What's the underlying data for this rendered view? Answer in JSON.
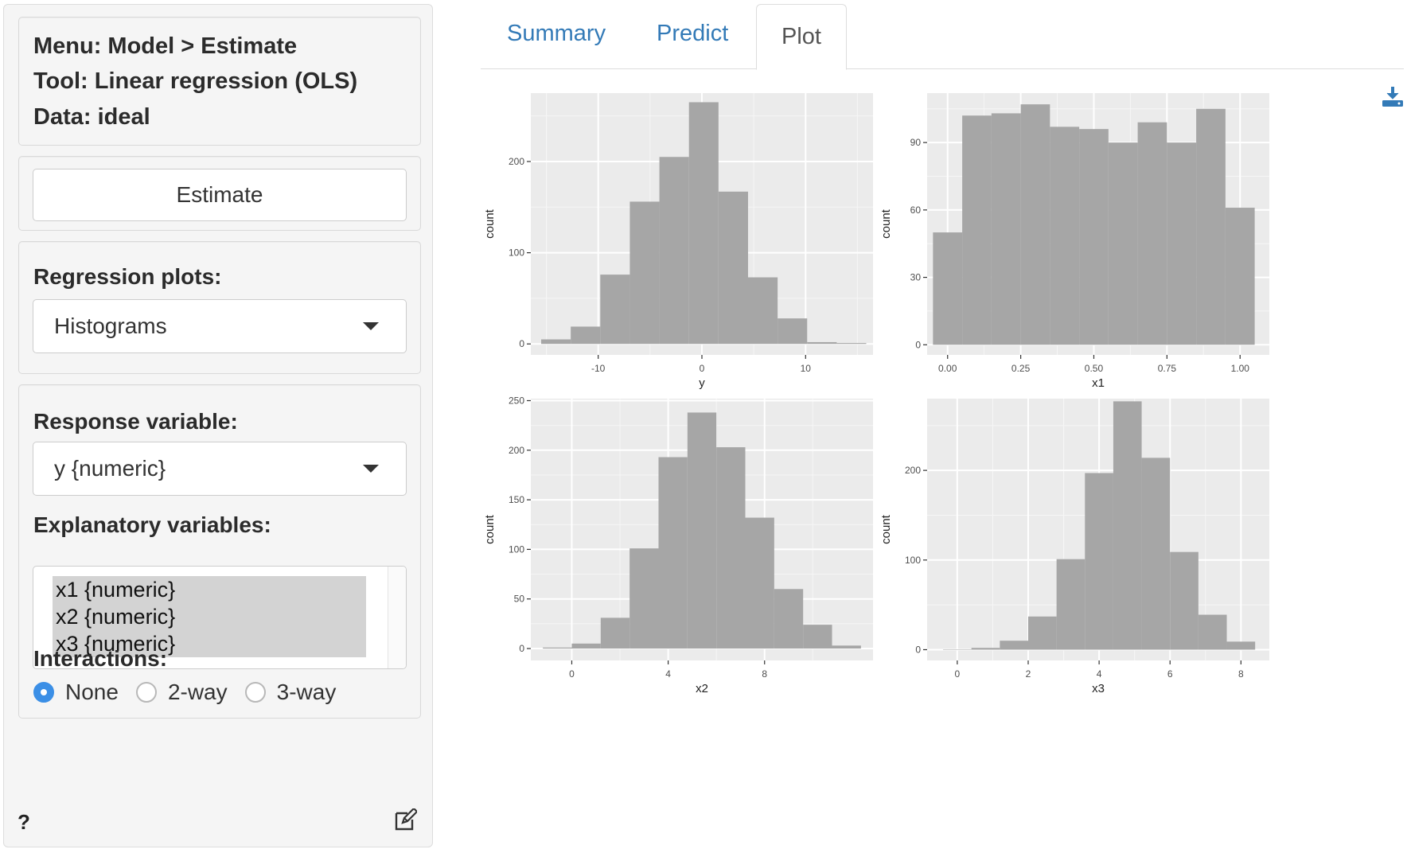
{
  "sidebar": {
    "info": {
      "menu": "Menu: Model > Estimate",
      "tool": "Tool: Linear regression (OLS)",
      "data": "Data: ideal"
    },
    "estimate_label": "Estimate",
    "regression_plots": {
      "label": "Regression plots:",
      "selected": "Histograms"
    },
    "response": {
      "label": "Response variable:",
      "selected": "y {numeric}"
    },
    "explanatory": {
      "label": "Explanatory variables:",
      "options": [
        "x1 {numeric}",
        "x2 {numeric}",
        "x3 {numeric}"
      ]
    },
    "interactions": {
      "label": "Interactions:",
      "options": [
        "None",
        "2-way",
        "3-way"
      ],
      "selected": "None"
    },
    "help_symbol": "?"
  },
  "tabs": [
    {
      "label": "Summary",
      "active": false
    },
    {
      "label": "Predict",
      "active": false
    },
    {
      "label": "Plot",
      "active": true
    }
  ],
  "icons": {
    "download": "download-icon",
    "edit": "edit-icon",
    "help": "help-icon"
  },
  "colors": {
    "link": "#337ab7",
    "radio_on": "#3b8fe6",
    "bar": "#a6a6a6",
    "panel": "#ebebeb"
  },
  "chart_data": [
    {
      "type": "bar",
      "variable": "y",
      "xlabel": "y",
      "ylabel": "count",
      "x_ticks": [
        -10,
        0,
        10
      ],
      "y_ticks": [
        0,
        100,
        200
      ],
      "xlim": [
        -16.5,
        16.5
      ],
      "ylim": [
        -12,
        275
      ],
      "binwidth": 2.85,
      "bin_starts": [
        -15.5,
        -12.65,
        -9.8,
        -6.95,
        -4.1,
        -1.25,
        1.6,
        4.45,
        7.3,
        10.15,
        13.0
      ],
      "values": [
        5,
        19,
        76,
        156,
        205,
        265,
        167,
        73,
        28,
        2,
        1
      ]
    },
    {
      "type": "bar",
      "variable": "x1",
      "xlabel": "x1",
      "ylabel": "count",
      "x_ticks": [
        "0.00",
        "0.25",
        "0.50",
        "0.75",
        "1.00"
      ],
      "y_ticks": [
        0,
        30,
        60,
        90
      ],
      "xlim": [
        -0.07,
        1.1
      ],
      "ylim": [
        -4.5,
        112
      ],
      "binwidth": 0.1,
      "bin_starts": [
        -0.05,
        0.05,
        0.15,
        0.25,
        0.35,
        0.45,
        0.55,
        0.65,
        0.75,
        0.85,
        0.95
      ],
      "values": [
        50,
        102,
        103,
        107,
        97,
        96,
        90,
        99,
        90,
        105,
        61
      ]
    },
    {
      "type": "bar",
      "variable": "x2",
      "xlabel": "x2",
      "ylabel": "count",
      "x_ticks": [
        0,
        4,
        8
      ],
      "y_ticks": [
        0,
        50,
        100,
        150,
        200,
        250
      ],
      "xlim": [
        -1.7,
        12.5
      ],
      "ylim": [
        -12,
        252
      ],
      "binwidth": 1.2,
      "bin_starts": [
        -1.2,
        0.0,
        1.2,
        2.4,
        3.6,
        4.8,
        6.0,
        7.2,
        8.4,
        9.6,
        10.8
      ],
      "values": [
        1,
        5,
        31,
        101,
        193,
        238,
        203,
        132,
        60,
        24,
        3
      ]
    },
    {
      "type": "bar",
      "variable": "x3",
      "xlabel": "x3",
      "ylabel": "count",
      "x_ticks": [
        0,
        2,
        4,
        6,
        8
      ],
      "y_ticks": [
        0,
        100,
        200
      ],
      "xlim": [
        -0.85,
        8.8
      ],
      "ylim": [
        -12,
        280
      ],
      "binwidth": 0.8,
      "bin_starts": [
        -0.4,
        0.4,
        1.2,
        2.0,
        2.8,
        3.6,
        4.4,
        5.2,
        6.0,
        6.8,
        7.6
      ],
      "values": [
        0,
        2,
        10,
        37,
        101,
        197,
        277,
        214,
        109,
        39,
        9
      ]
    }
  ]
}
